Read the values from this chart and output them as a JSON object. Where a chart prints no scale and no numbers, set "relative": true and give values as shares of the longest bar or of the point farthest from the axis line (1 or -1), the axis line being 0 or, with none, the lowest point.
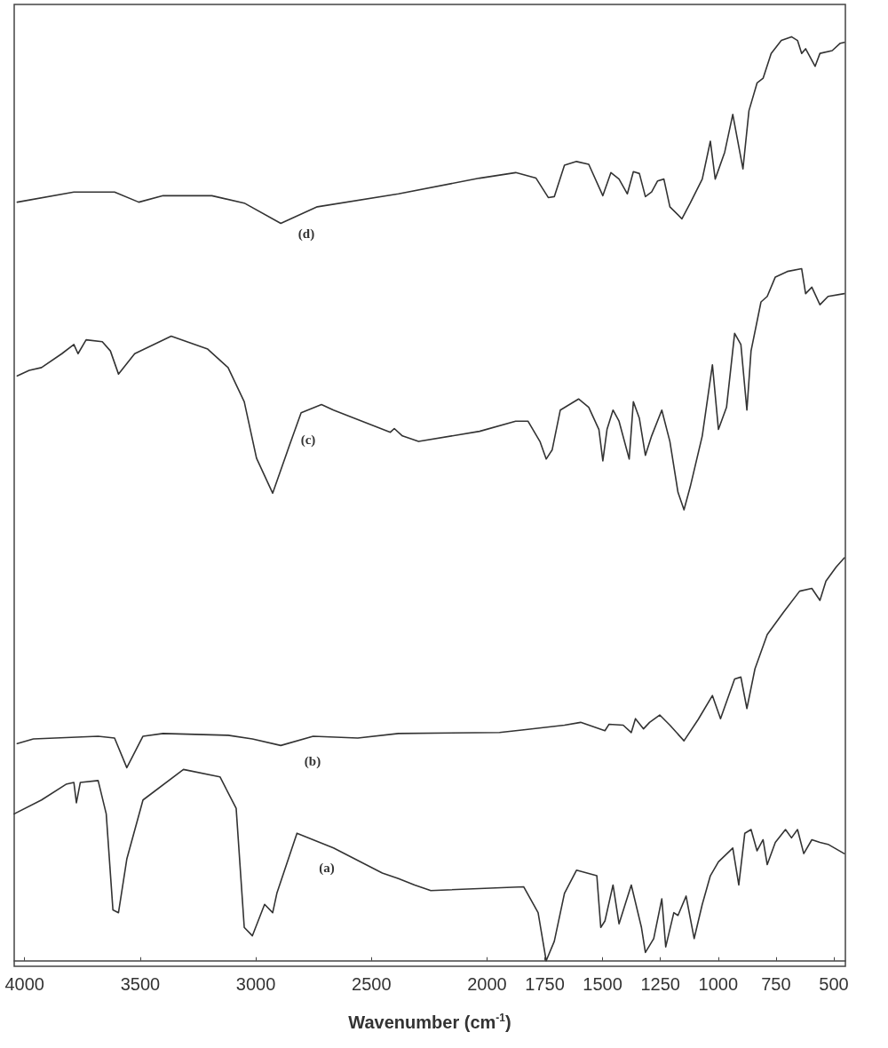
{
  "chart_data": {
    "type": "line",
    "relative": true,
    "xlabel": "Wavenumber (cm$^{-1}$)",
    "xlim": [
      4045,
      450
    ],
    "xticks": [
      4000,
      3500,
      3000,
      2500,
      2000,
      1750,
      1500,
      1250,
      1000,
      750,
      500
    ],
    "legend": false,
    "series": [
      {
        "name": "(d)",
        "color": "#333333",
        "x": [
          4032,
          3787,
          3611,
          3506,
          3401,
          3190,
          3050,
          2892,
          2734,
          2383,
          2032,
          1876,
          1788,
          1735,
          1709,
          1665,
          1613,
          1560,
          1499,
          1464,
          1429,
          1393,
          1367,
          1341,
          1315,
          1288,
          1262,
          1235,
          1209,
          1157,
          1121,
          1069,
          1034,
          1013,
          972,
          937,
          893,
          867,
          832,
          806,
          771,
          727,
          683,
          657,
          639,
          622,
          581,
          560,
          507,
          472,
          455
        ],
        "values": [
          0.821,
          0.832,
          0.832,
          0.821,
          0.828,
          0.828,
          0.82,
          0.798,
          0.816,
          0.83,
          0.847,
          0.853,
          0.847,
          0.826,
          0.827,
          0.861,
          0.865,
          0.862,
          0.828,
          0.853,
          0.846,
          0.83,
          0.854,
          0.852,
          0.827,
          0.832,
          0.844,
          0.846,
          0.816,
          0.803,
          0.82,
          0.846,
          0.887,
          0.846,
          0.875,
          0.916,
          0.857,
          0.92,
          0.95,
          0.955,
          0.982,
          0.996,
          1.0,
          0.996,
          0.982,
          0.987,
          0.968,
          0.982,
          0.985,
          0.993,
          0.994
        ]
      },
      {
        "name": "(c)",
        "color": "#333333",
        "x": [
          4032,
          3980,
          3927,
          3839,
          3787,
          3769,
          3734,
          3664,
          3629,
          3594,
          3524,
          3366,
          3208,
          3120,
          3050,
          2997,
          2927,
          2857,
          2804,
          2716,
          2664,
          2418,
          2401,
          2366,
          2296,
          2032,
          1876,
          1823,
          1771,
          1744,
          1718,
          1683,
          1604,
          1560,
          1516,
          1499,
          1481,
          1455,
          1429,
          1385,
          1367,
          1341,
          1315,
          1288,
          1244,
          1209,
          1174,
          1148,
          1121,
          1069,
          1025,
          999,
          964,
          929,
          902,
          876,
          858,
          815,
          788,
          753,
          701,
          639,
          622,
          595,
          560,
          525,
          455
        ],
        "values": [
          0.633,
          0.639,
          0.642,
          0.657,
          0.667,
          0.657,
          0.672,
          0.67,
          0.66,
          0.635,
          0.657,
          0.676,
          0.662,
          0.642,
          0.605,
          0.544,
          0.506,
          0.556,
          0.593,
          0.602,
          0.596,
          0.572,
          0.576,
          0.568,
          0.562,
          0.573,
          0.584,
          0.584,
          0.562,
          0.543,
          0.553,
          0.596,
          0.608,
          0.599,
          0.575,
          0.541,
          0.575,
          0.596,
          0.584,
          0.543,
          0.605,
          0.587,
          0.547,
          0.568,
          0.596,
          0.562,
          0.507,
          0.488,
          0.513,
          0.568,
          0.645,
          0.575,
          0.599,
          0.679,
          0.667,
          0.596,
          0.66,
          0.713,
          0.719,
          0.74,
          0.746,
          0.749,
          0.722,
          0.729,
          0.71,
          0.719,
          0.722
        ]
      },
      {
        "name": "(b)",
        "color": "#333333",
        "x": [
          4032,
          3962,
          3682,
          3611,
          3558,
          3488,
          3401,
          3120,
          3015,
          2892,
          2752,
          2559,
          2383,
          1946,
          1841,
          1665,
          1595,
          1490,
          1472,
          1411,
          1376,
          1358,
          1323,
          1297,
          1253,
          1209,
          1148,
          1087,
          1025,
          990,
          929,
          902,
          876,
          841,
          788,
          718,
          648,
          595,
          560,
          534,
          490,
          455
        ],
        "values": [
          0.235,
          0.24,
          0.243,
          0.241,
          0.209,
          0.243,
          0.246,
          0.244,
          0.24,
          0.233,
          0.243,
          0.241,
          0.246,
          0.247,
          0.25,
          0.255,
          0.258,
          0.249,
          0.256,
          0.255,
          0.247,
          0.262,
          0.251,
          0.258,
          0.266,
          0.255,
          0.238,
          0.261,
          0.287,
          0.262,
          0.305,
          0.307,
          0.273,
          0.316,
          0.353,
          0.377,
          0.4,
          0.403,
          0.39,
          0.411,
          0.426,
          0.436
        ]
      },
      {
        "name": "(a)",
        "color": "#333333",
        "x": [
          4045,
          3927,
          3821,
          3787,
          3776,
          3759,
          3682,
          3647,
          3618,
          3594,
          3558,
          3488,
          3313,
          3155,
          3085,
          3050,
          3015,
          2962,
          2927,
          2909,
          2822,
          2664,
          2453,
          2383,
          2313,
          2243,
          1841,
          1779,
          1744,
          1709,
          1665,
          1613,
          1525,
          1508,
          1490,
          1455,
          1429,
          1376,
          1332,
          1315,
          1279,
          1244,
          1227,
          1192,
          1174,
          1139,
          1104,
          1069,
          1034,
          999,
          937,
          911,
          885,
          858,
          832,
          806,
          788,
          753,
          709,
          683,
          657,
          630,
          595,
          560,
          525,
          455
        ],
        "values": [
          0.159,
          0.174,
          0.191,
          0.193,
          0.171,
          0.193,
          0.195,
          0.159,
          0.055,
          0.052,
          0.11,
          0.174,
          0.207,
          0.199,
          0.165,
          0.036,
          0.027,
          0.061,
          0.052,
          0.073,
          0.138,
          0.122,
          0.095,
          0.089,
          0.082,
          0.076,
          0.08,
          0.052,
          0.0,
          0.021,
          0.073,
          0.098,
          0.092,
          0.036,
          0.043,
          0.082,
          0.04,
          0.082,
          0.036,
          0.009,
          0.024,
          0.067,
          0.015,
          0.052,
          0.049,
          0.07,
          0.024,
          0.061,
          0.092,
          0.107,
          0.122,
          0.082,
          0.138,
          0.142,
          0.119,
          0.131,
          0.104,
          0.128,
          0.142,
          0.133,
          0.142,
          0.116,
          0.131,
          0.128,
          0.126,
          0.116
        ]
      }
    ]
  }
}
